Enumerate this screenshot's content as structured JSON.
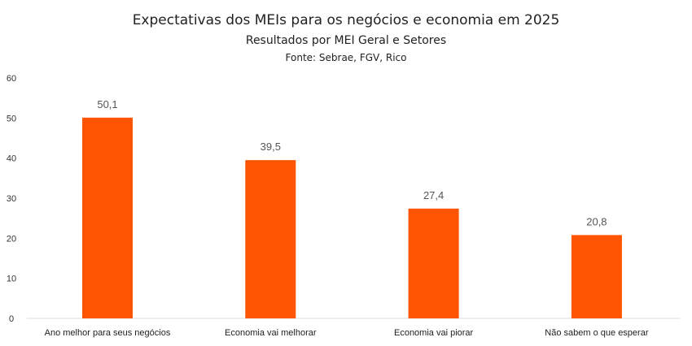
{
  "chart_data": {
    "type": "bar",
    "title": "Expectativas dos MEIs para os negócios e economia em 2025",
    "subtitle": "Resultados por MEI Geral e Setores",
    "source": "Fonte: Sebrae, FGV, Rico",
    "categories": [
      "Ano melhor para seus negócios",
      "Economia vai melhorar",
      "Economia vai piorar",
      "Não sabem o que esperar"
    ],
    "values": [
      50.1,
      39.5,
      27.4,
      20.8
    ],
    "data_labels": [
      "50,1",
      "39,5",
      "27,4",
      "20,8"
    ],
    "xlabel": "",
    "ylabel": "",
    "ylim": [
      0,
      60
    ],
    "yticks": [
      0,
      10,
      20,
      30,
      40,
      50,
      60
    ],
    "grid": false,
    "bar_color": "#FF5500"
  }
}
